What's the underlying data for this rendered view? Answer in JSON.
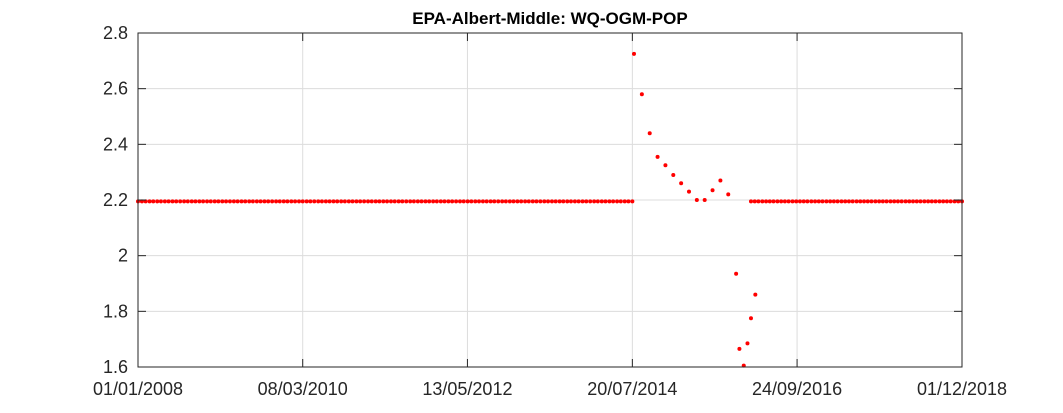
{
  "chart_data": {
    "type": "scatter",
    "title": "EPA-Albert-Middle: WQ-OGM-POP",
    "xlabel": "",
    "ylabel": "",
    "x_axis_type": "date",
    "xlim": [
      "2008-01-01",
      "2018-12-01"
    ],
    "ylim": [
      1.6,
      2.8
    ],
    "x_ticks": [
      "2008-01-01",
      "2010-03-08",
      "2012-05-13",
      "2014-07-20",
      "2016-09-24",
      "2018-12-01"
    ],
    "x_tick_labels": [
      "01/01/2008",
      "08/03/2010",
      "13/05/2012",
      "20/07/2014",
      "24/09/2016",
      "01/12/2018"
    ],
    "y_ticks": [
      1.6,
      1.8,
      2.0,
      2.2,
      2.4,
      2.6,
      2.8
    ],
    "y_tick_labels": [
      "1.6",
      "1.8",
      "2",
      "2.2",
      "2.4",
      "2.6",
      "2.8"
    ],
    "grid": true,
    "marker_color": "#ff0000",
    "series": [
      {
        "baseline_segments": [
          {
            "start": "2008-01-01",
            "end": "2014-07-20",
            "value": 2.195,
            "count": 130
          },
          {
            "start": "2016-02-14",
            "end": "2018-12-01",
            "value": 2.195,
            "count": 57
          }
        ],
        "points": [
          {
            "x": "2014-07-28",
            "y": 2.725
          },
          {
            "x": "2014-09-04",
            "y": 2.58
          },
          {
            "x": "2014-10-12",
            "y": 2.44
          },
          {
            "x": "2014-11-19",
            "y": 2.355
          },
          {
            "x": "2014-12-27",
            "y": 2.325
          },
          {
            "x": "2015-02-03",
            "y": 2.29
          },
          {
            "x": "2015-03-13",
            "y": 2.26
          },
          {
            "x": "2015-04-20",
            "y": 2.23
          },
          {
            "x": "2015-05-28",
            "y": 2.2
          },
          {
            "x": "2015-07-05",
            "y": 2.2
          },
          {
            "x": "2015-08-12",
            "y": 2.235
          },
          {
            "x": "2015-09-19",
            "y": 2.27
          },
          {
            "x": "2015-10-27",
            "y": 2.22
          },
          {
            "x": "2015-12-04",
            "y": 1.935
          },
          {
            "x": "2015-12-20",
            "y": 1.665
          },
          {
            "x": "2016-01-10",
            "y": 1.605
          },
          {
            "x": "2016-01-28",
            "y": 1.685
          },
          {
            "x": "2016-02-14",
            "y": 1.775
          },
          {
            "x": "2016-03-06",
            "y": 1.86
          }
        ]
      }
    ]
  }
}
